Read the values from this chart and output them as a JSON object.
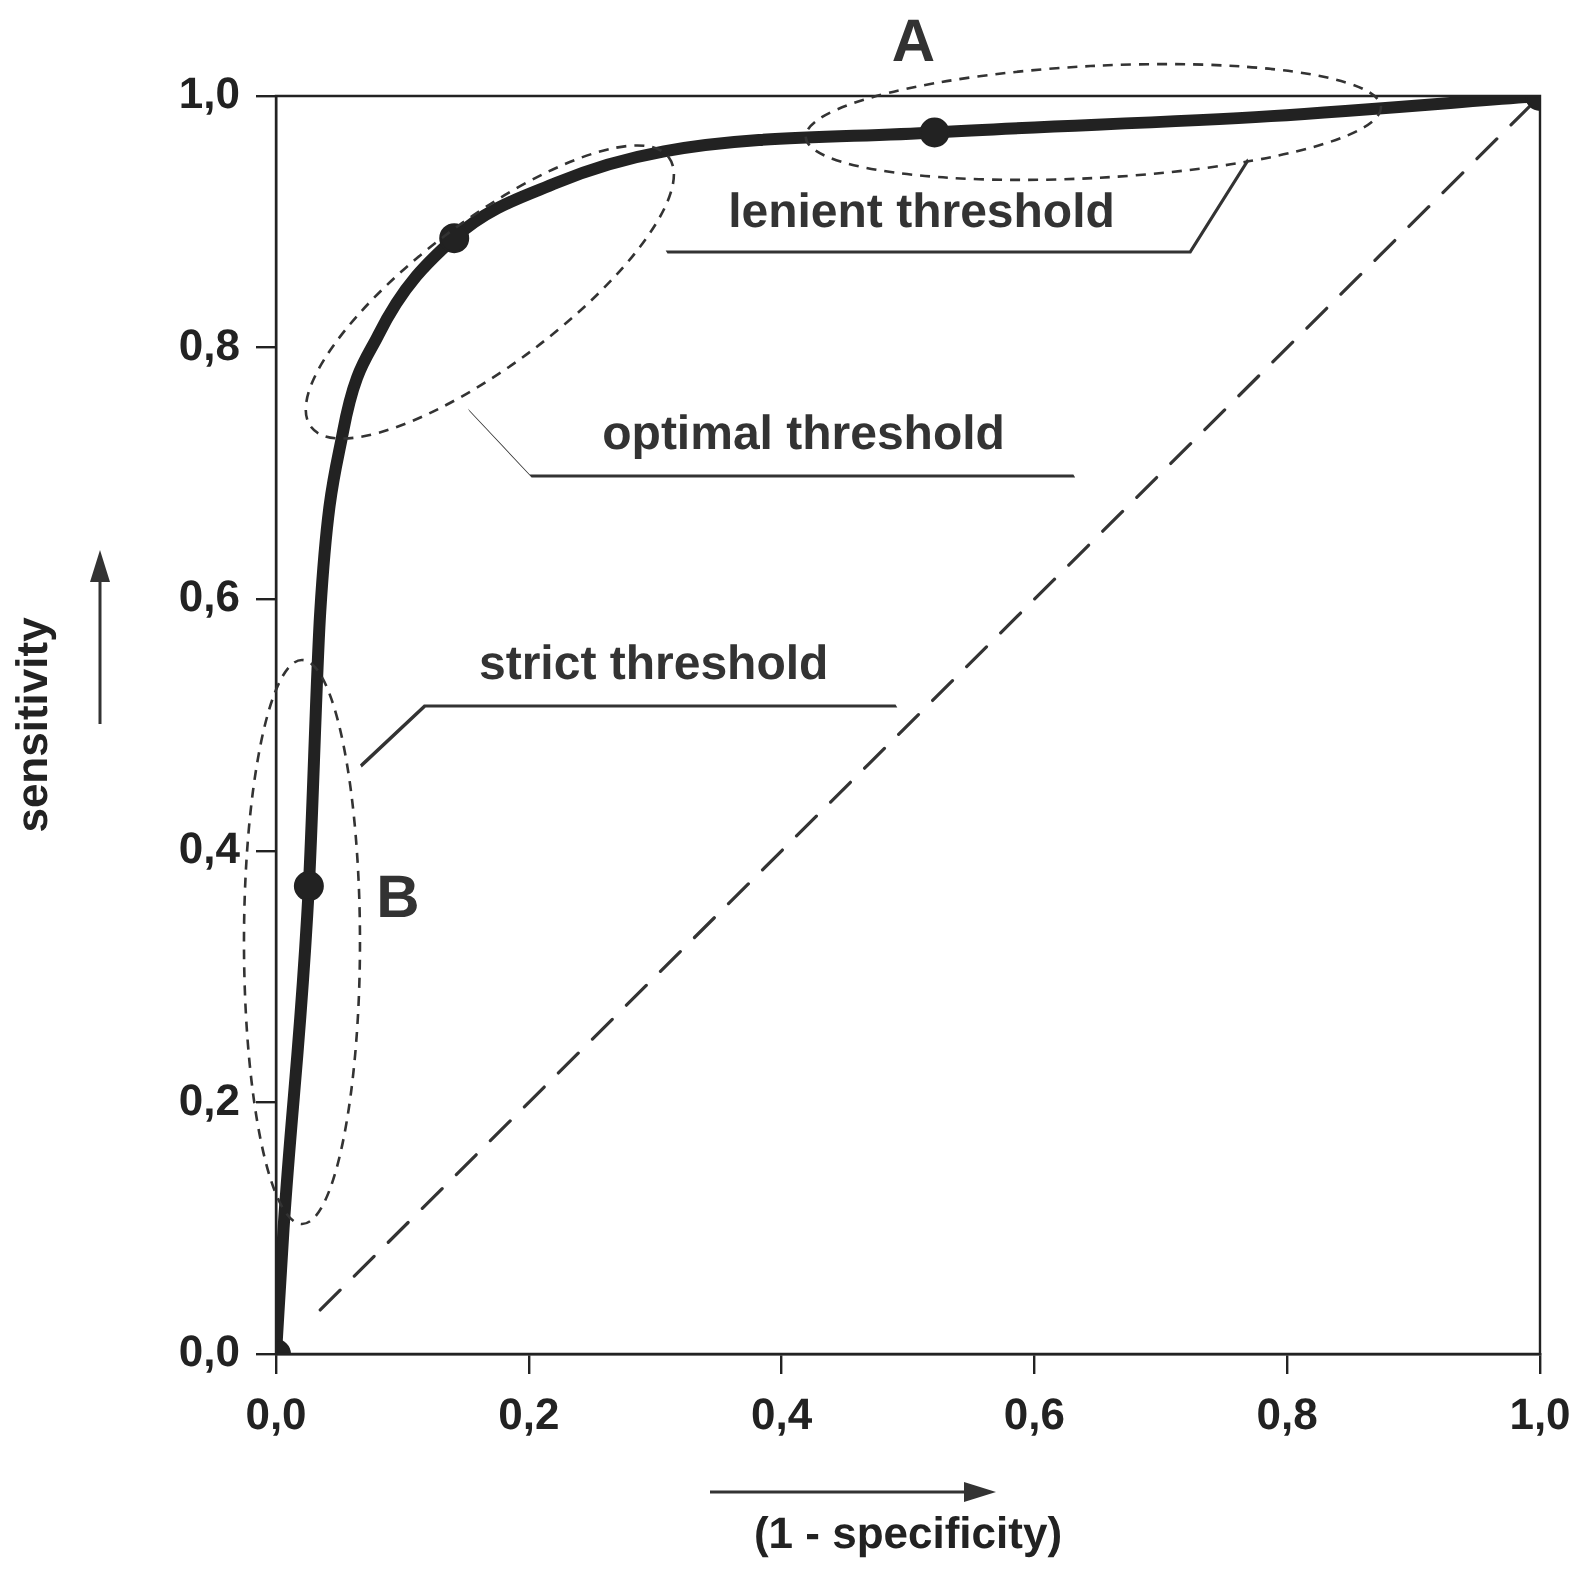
{
  "chart_data": {
    "type": "line",
    "xlabel": "(1 - specificity)",
    "ylabel": "sensitivity",
    "xlim": [
      0,
      1
    ],
    "ylim": [
      0,
      1
    ],
    "xticks": [
      {
        "value": 0,
        "label": "0,0"
      },
      {
        "value": 0.2,
        "label": "0,2"
      },
      {
        "value": 0.4,
        "label": "0,4"
      },
      {
        "value": 0.6,
        "label": "0,6"
      },
      {
        "value": 0.8,
        "label": "0,8"
      },
      {
        "value": 1,
        "label": "1,0"
      }
    ],
    "yticks": [
      {
        "value": 0,
        "label": "0,0"
      },
      {
        "value": 0.2,
        "label": "0,2"
      },
      {
        "value": 0.4,
        "label": "0,4"
      },
      {
        "value": 0.6,
        "label": "0,6"
      },
      {
        "value": 0.8,
        "label": "0,8"
      },
      {
        "value": 1,
        "label": "1,0"
      }
    ],
    "grid": false,
    "legend": false,
    "series": [
      {
        "color": "#222222",
        "marker": "none",
        "line_style": "solid",
        "x": [
          0,
          0.006,
          0.026,
          0.035,
          0.053,
          0.081,
          0.141,
          0.222,
          0.307,
          0.521,
          0.787,
          1
        ],
        "values": [
          0,
          0.1,
          0.372,
          0.59,
          0.733,
          0.81,
          0.887,
          0.931,
          0.956,
          0.971,
          0.984,
          1
        ]
      },
      {
        "type": "scatter",
        "color": "#222222",
        "marker": "circle",
        "x": [
          0,
          0.026,
          0.141,
          0.521,
          1
        ],
        "values": [
          0,
          0.372,
          0.887,
          0.971,
          1
        ]
      },
      {
        "type": "line",
        "color": "#333333",
        "marker": "none",
        "line_style": "dashed",
        "x": [
          0.035,
          1
        ],
        "values": [
          0.035,
          1
        ]
      }
    ],
    "annotations": [
      "A",
      "lenient threshold",
      "optimal threshold",
      "strict threshold",
      "B"
    ]
  }
}
